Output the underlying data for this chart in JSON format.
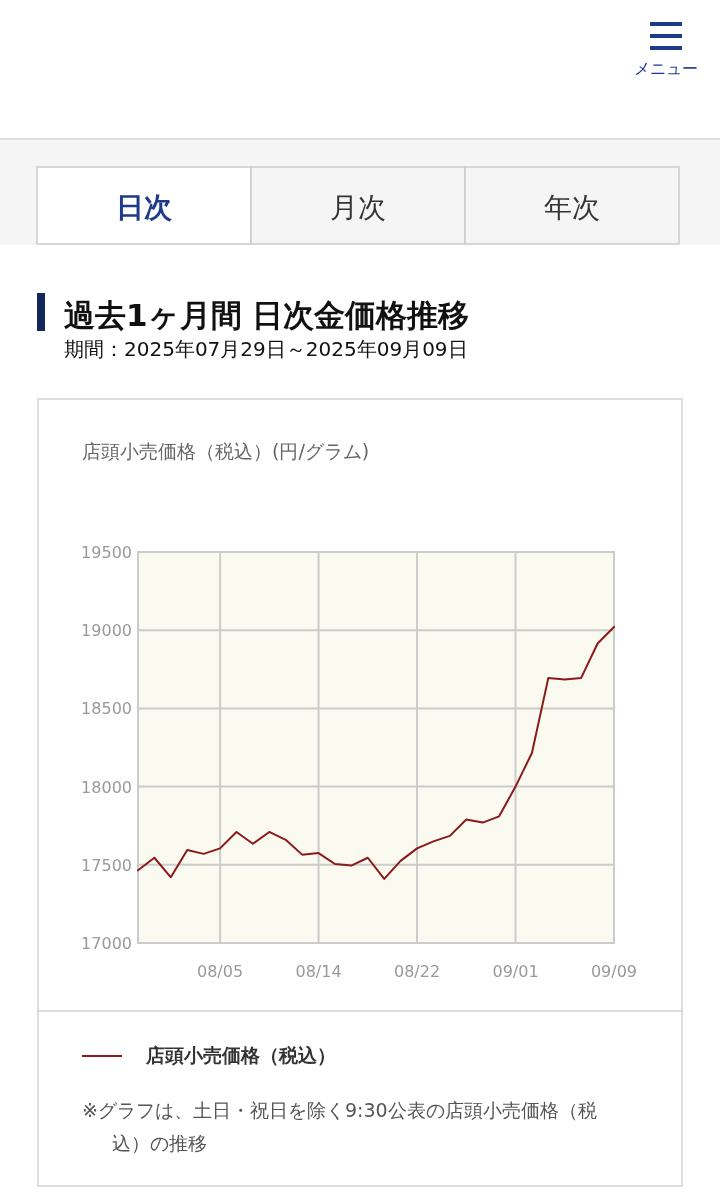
{
  "chart_data": {
    "type": "line",
    "title": "過去1ヶ月間 日次金価格推移",
    "subtitle": "期間：2025年07月29日～2025年09月09日",
    "ylabel": "店頭小売価格（税込）(円/グラム)",
    "categories": [
      null,
      null,
      null,
      null,
      null,
      "08/05",
      null,
      null,
      null,
      null,
      null,
      "08/14",
      null,
      null,
      null,
      null,
      null,
      "08/22",
      null,
      null,
      null,
      null,
      null,
      "09/01",
      null,
      null,
      null,
      null,
      null,
      "09/09"
    ],
    "series": [
      {
        "name": "店頭小売価格（税込）",
        "color": "#8b1a1a",
        "values": [
          17465,
          17545,
          17420,
          17595,
          17570,
          17605,
          17710,
          17635,
          17710,
          17660,
          17565,
          17575,
          17505,
          17495,
          17545,
          17410,
          17525,
          17605,
          17650,
          17685,
          17790,
          17770,
          17810,
          18000,
          18215,
          18695,
          18685,
          18695,
          18915,
          19020
        ]
      }
    ],
    "ylim": [
      17000,
      19500
    ],
    "yticks": [
      17000,
      17500,
      18000,
      18500,
      19000,
      19500
    ],
    "grid": true,
    "legend": "bottom",
    "marker": "none",
    "line_style": "solid",
    "annotations": [
      "日次",
      "月次",
      "年次",
      "メニュー",
      "※グラフは、土日・祝日を除く9:30公表の店頭小売価格（税込）の推移"
    ]
  }
}
